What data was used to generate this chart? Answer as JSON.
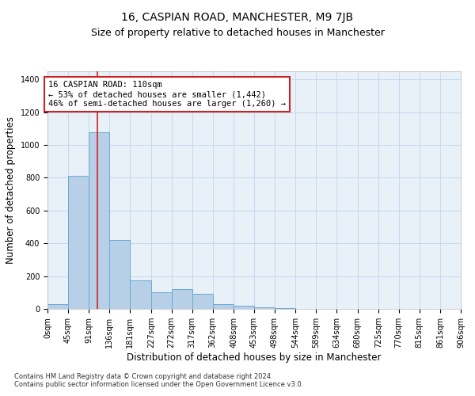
{
  "title": "16, CASPIAN ROAD, MANCHESTER, M9 7JB",
  "subtitle": "Size of property relative to detached houses in Manchester",
  "xlabel": "Distribution of detached houses by size in Manchester",
  "ylabel": "Number of detached properties",
  "bin_edges": [
    0,
    45,
    91,
    136,
    181,
    227,
    272,
    317,
    362,
    408,
    453,
    498,
    544,
    589,
    634,
    680,
    725,
    770,
    815,
    861,
    906
  ],
  "bin_labels": [
    "0sqm",
    "45sqm",
    "91sqm",
    "136sqm",
    "181sqm",
    "227sqm",
    "272sqm",
    "317sqm",
    "362sqm",
    "408sqm",
    "453sqm",
    "498sqm",
    "544sqm",
    "589sqm",
    "634sqm",
    "680sqm",
    "725sqm",
    "770sqm",
    "815sqm",
    "861sqm",
    "906sqm"
  ],
  "bar_heights": [
    30,
    810,
    1080,
    420,
    175,
    100,
    120,
    90,
    30,
    20,
    10,
    5,
    2,
    1,
    1,
    0,
    0,
    0,
    0,
    0
  ],
  "bar_color": "#b8cfe8",
  "bar_edge_color": "#6aaad4",
  "grid_color": "#c8d8ec",
  "background_color": "#e8f0f8",
  "property_line_x": 110,
  "property_line_color": "#cc2222",
  "annotation_line1": "16 CASPIAN ROAD: 110sqm",
  "annotation_line2": "← 53% of detached houses are smaller (1,442)",
  "annotation_line3": "46% of semi-detached houses are larger (1,260) →",
  "annotation_box_color": "#ffffff",
  "annotation_box_edge": "#cc2222",
  "ylim": [
    0,
    1450
  ],
  "yticks": [
    0,
    200,
    400,
    600,
    800,
    1000,
    1200,
    1400
  ],
  "footnote": "Contains HM Land Registry data © Crown copyright and database right 2024.\nContains public sector information licensed under the Open Government Licence v3.0.",
  "title_fontsize": 10,
  "subtitle_fontsize": 9,
  "xlabel_fontsize": 8.5,
  "ylabel_fontsize": 8.5,
  "tick_fontsize": 7,
  "annotation_fontsize": 7.5,
  "footnote_fontsize": 6
}
